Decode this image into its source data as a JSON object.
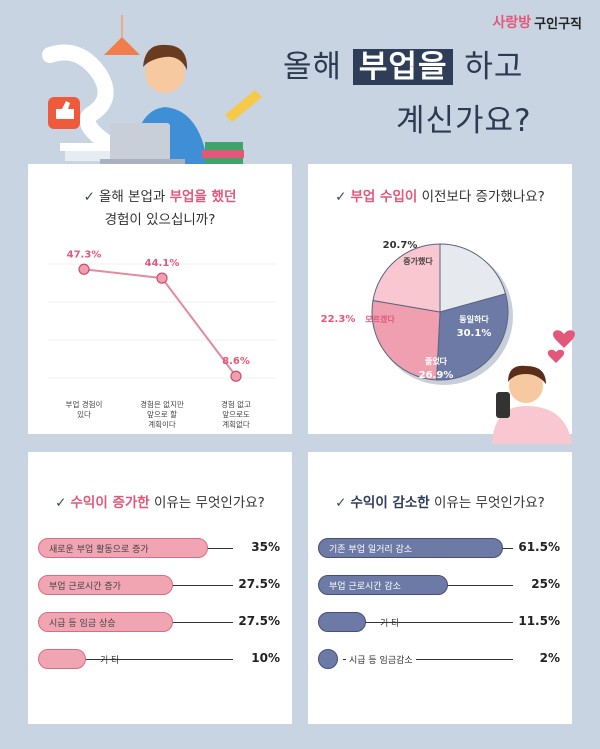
{
  "brand": {
    "name_part1": "사랑방",
    "name_part2": "구인구직"
  },
  "headline": {
    "pre": "올해 ",
    "highlight": "부업을",
    "post": " 하고",
    "line2": "계신가요?"
  },
  "cards": {
    "q1": {
      "pre": "올해 본업과 ",
      "highlight": "부업을 했던",
      "line2": "경험이 있으십니까?"
    },
    "q2": {
      "highlight": "부업 수입이",
      "post": " 이전보다 증가했나요?"
    },
    "q3": {
      "highlight": "수익이 증가한",
      "post": " 이유는 무엇인가요?"
    },
    "q4": {
      "highlight": "수익이 감소한",
      "post": " 이유는 무엇인가요?"
    }
  },
  "colors": {
    "pink": "#e2587a",
    "navy": "#2e3d58",
    "pink_bar": "#f1a5b3",
    "navy_bar": "#6d7aa6",
    "grey_slice": "#e6e9ed",
    "pink_slice": "#f9c7d0",
    "mid_pink_slice": "#ef9fb0"
  },
  "chart_data": [
    {
      "type": "line",
      "categories": [
        "부업 경험이 있다",
        "경험은 없지만 앞으로 할 계획이다",
        "경험 없고 앞으로도 계획없다"
      ],
      "category_lines": [
        [
          "부업 경험이",
          "있다"
        ],
        [
          "경험은 없지만",
          "앞으로 할",
          "계획이다"
        ],
        [
          "경험 없고",
          "앞으로도",
          "계획없다"
        ]
      ],
      "values": [
        47.3,
        44.1,
        8.6
      ],
      "value_labels": [
        "47.3%",
        "44.1%",
        "8.6%"
      ],
      "ylim": [
        0,
        55
      ]
    },
    {
      "type": "pie",
      "labels": [
        "증가했다",
        "동일하다",
        "줄었다",
        "모르겠다"
      ],
      "values": [
        20.7,
        30.1,
        26.9,
        22.3
      ],
      "value_labels": [
        "20.7%",
        "30.1%",
        "26.9%",
        "22.3%"
      ],
      "colors": [
        "#e6e9ed",
        "#6d7aa6",
        "#ef9fb0",
        "#f9c7d0"
      ]
    },
    {
      "type": "bar",
      "categories": [
        "새로운 부업 활동으로 증가",
        "부업 근로시간 증가",
        "시급 등 임금 상승",
        "기      타"
      ],
      "values": [
        35,
        27.5,
        27.5,
        10
      ],
      "value_labels": [
        "35%",
        "27.5%",
        "27.5%",
        "10%"
      ]
    },
    {
      "type": "bar",
      "categories": [
        "기존 부업 일거리 감소",
        "부업 근로시간 감소",
        "기      타",
        "시급 등 임금감소"
      ],
      "values": [
        61.5,
        25,
        11.5,
        2
      ],
      "value_labels": [
        "61.5%",
        "25%",
        "11.5%",
        "2%"
      ]
    }
  ]
}
